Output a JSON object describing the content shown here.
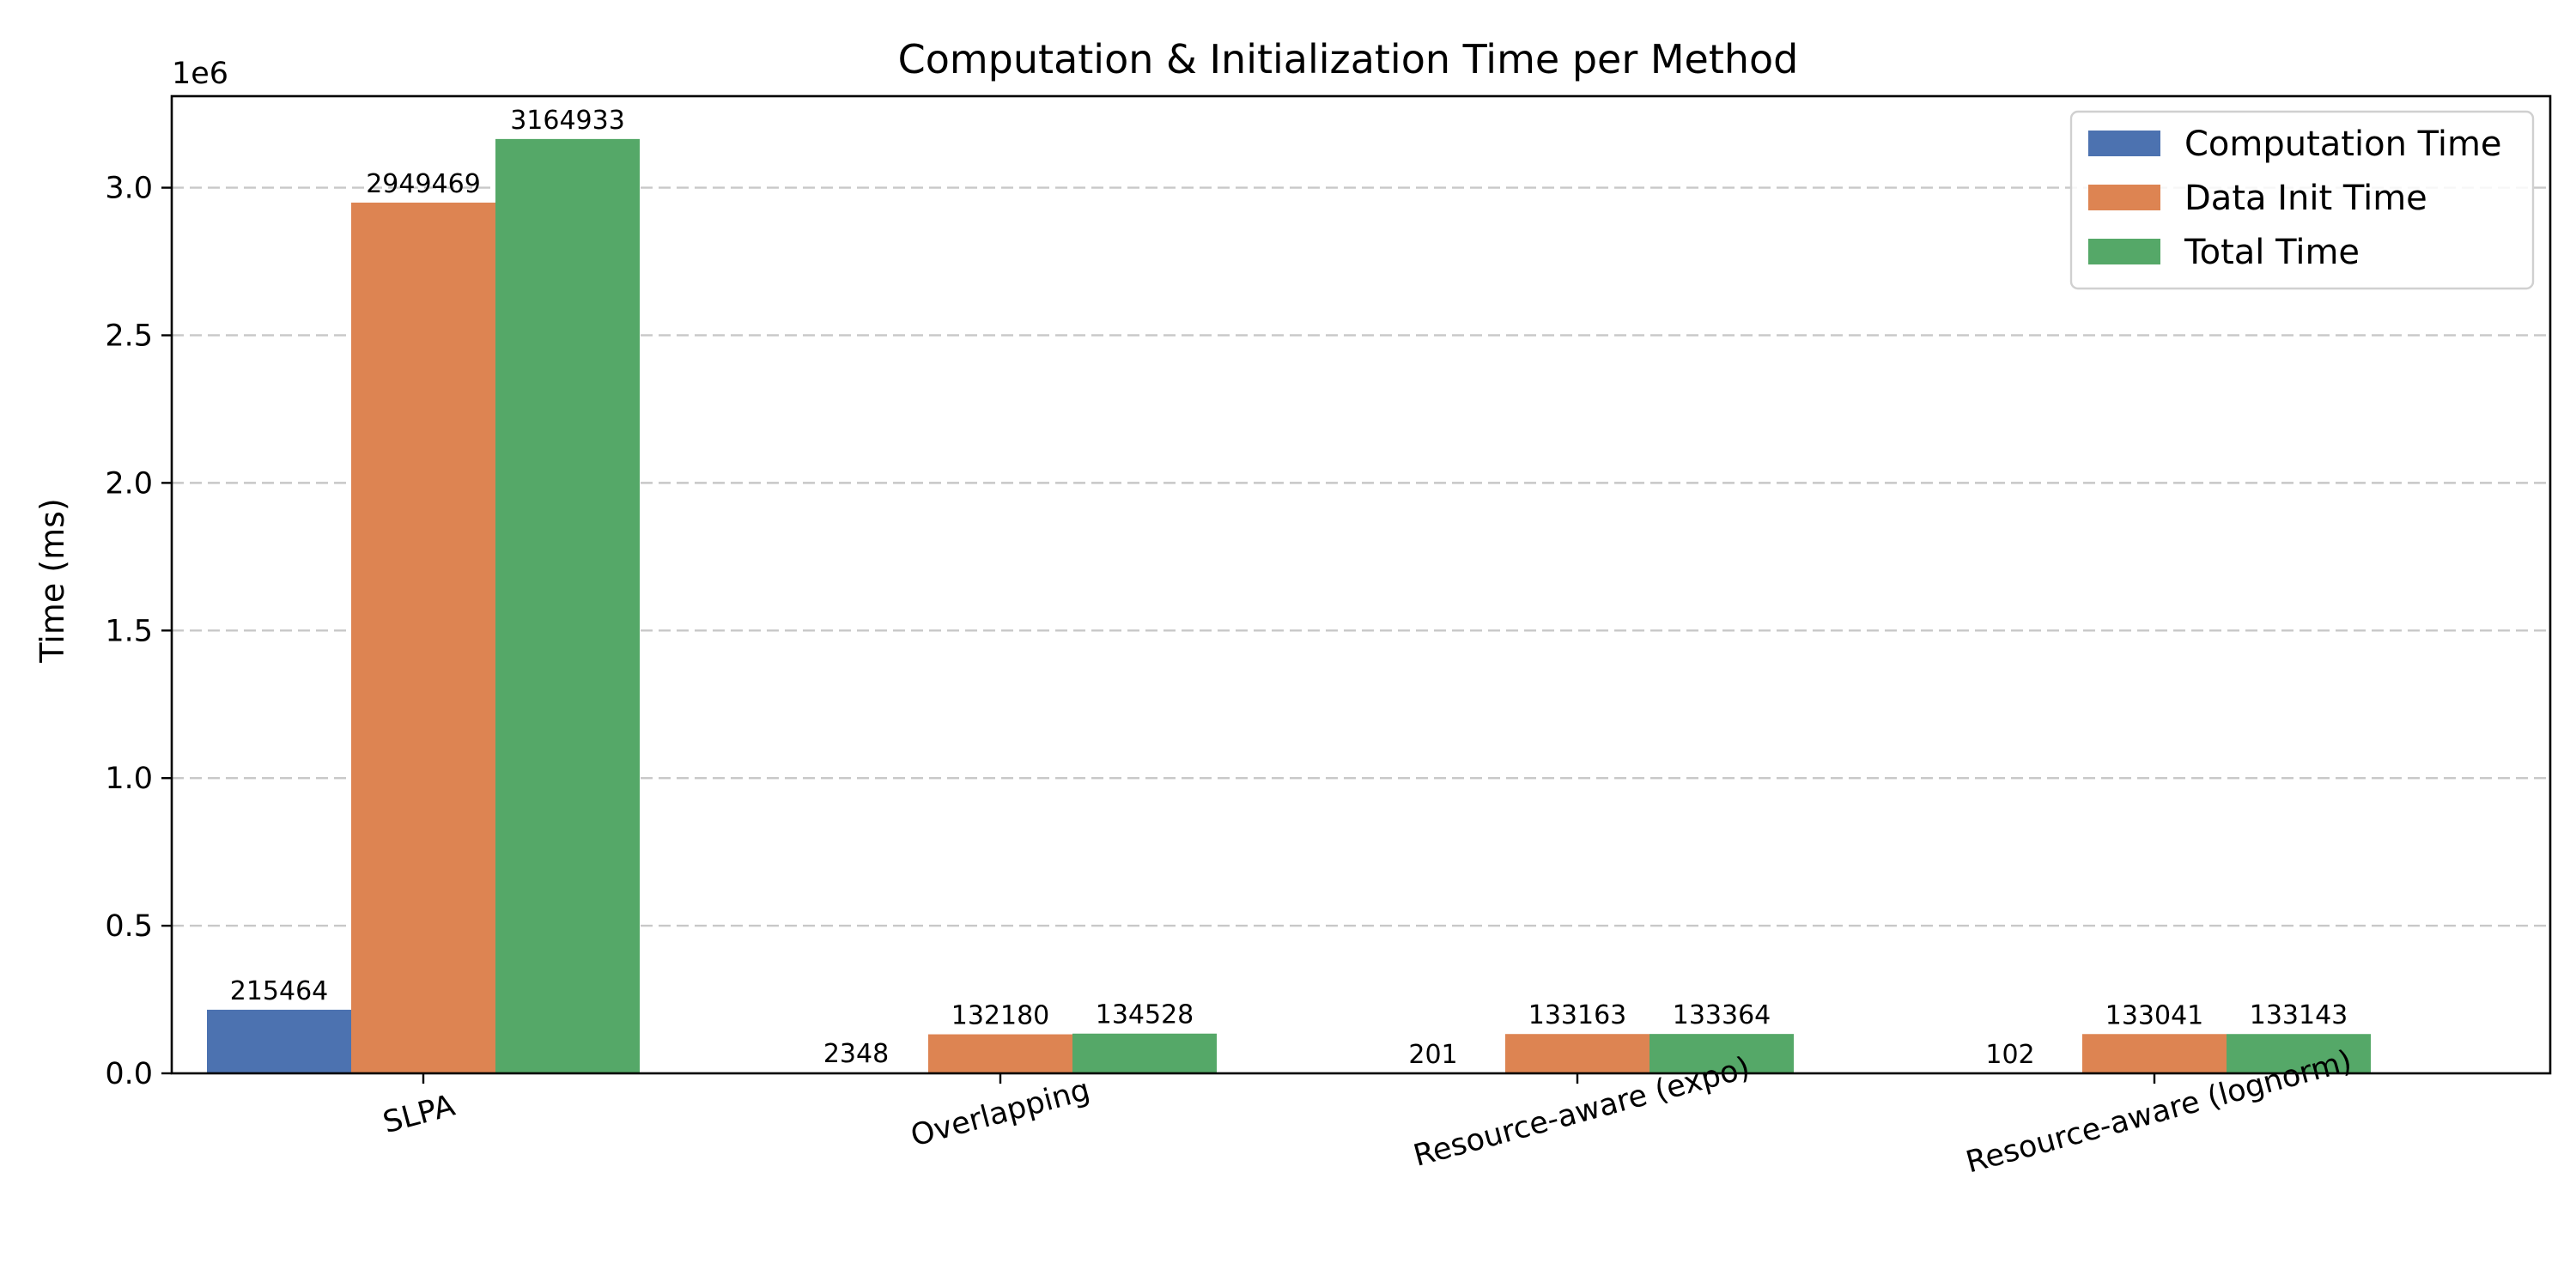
{
  "chart_data": {
    "type": "bar",
    "title": "Computation & Initialization Time per Method",
    "xlabel": "",
    "ylabel": "Time (ms)",
    "y_scale_label": "1e6",
    "ylim": [
      0,
      3310000
    ],
    "yticks": [
      0,
      500000,
      1000000,
      1500000,
      2000000,
      2500000,
      3000000
    ],
    "ytick_labels": [
      "0.0",
      "0.5",
      "1.0",
      "1.5",
      "2.0",
      "2.5",
      "3.0"
    ],
    "categories": [
      "SLPA",
      "Overlapping",
      "Resource-aware (expo)",
      "Resource-aware (lognorm)"
    ],
    "series": [
      {
        "name": "Computation Time",
        "color": "#4c72b0",
        "values": [
          215464,
          2348,
          201,
          102
        ]
      },
      {
        "name": "Data Init Time",
        "color": "#dd8452",
        "values": [
          2949469,
          132180,
          133163,
          133041
        ]
      },
      {
        "name": "Total Time",
        "color": "#55a868",
        "values": [
          3164933,
          134528,
          133364,
          133143
        ]
      }
    ],
    "grid": "y-dashed",
    "legend": "top-right"
  }
}
